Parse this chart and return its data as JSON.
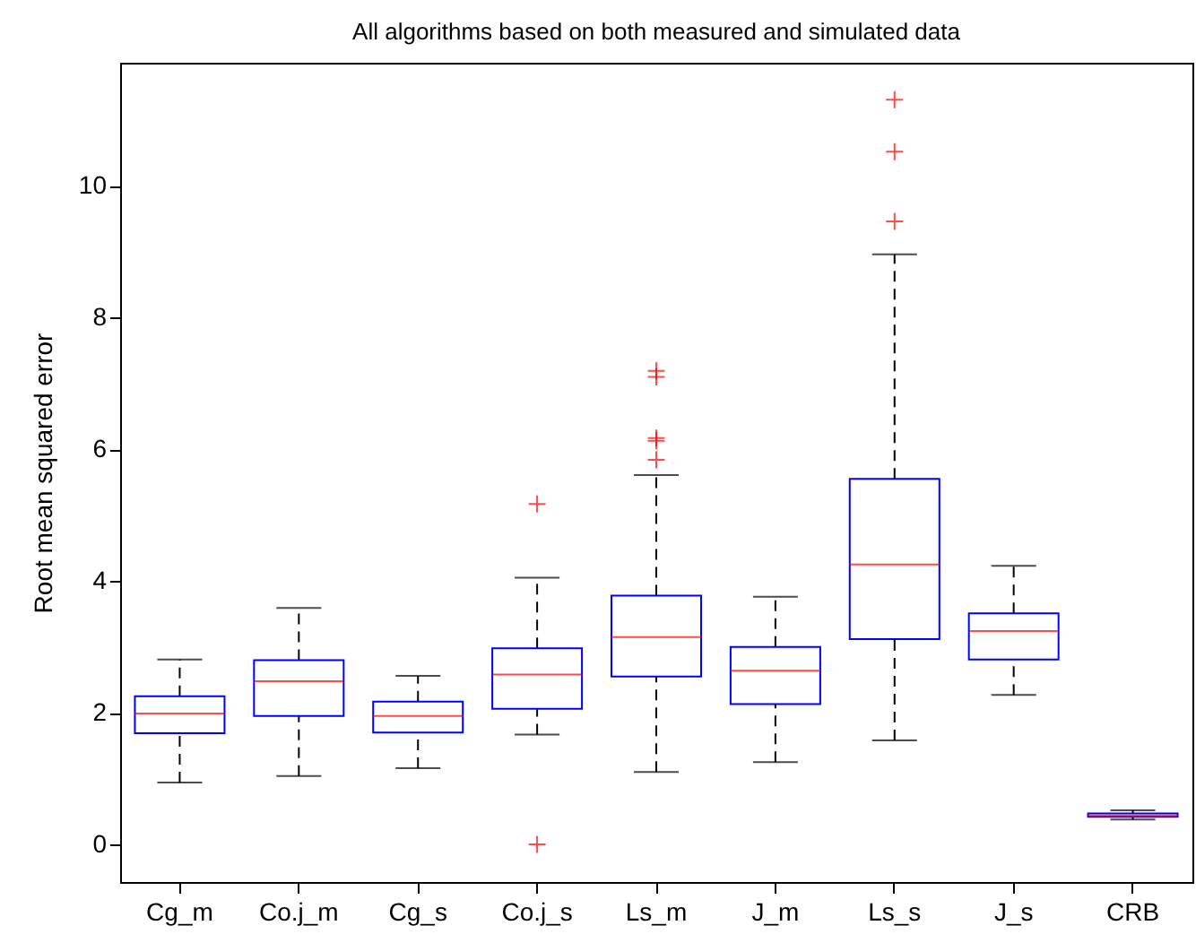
{
  "chart_data": {
    "type": "box",
    "title": "All algorithms based on both measured and simulated data",
    "ylabel": "Root mean squared error",
    "categories": [
      "Cg_m",
      "Co.j_m",
      "Cg_s",
      "Co.j_s",
      "Ls_m",
      "J_m",
      "Ls_s",
      "J_s",
      "CRB"
    ],
    "ylim": [
      -0.57,
      11.87
    ],
    "yticks": [
      0,
      2,
      4,
      6,
      8,
      10
    ],
    "grid": false,
    "color": "#0000ff",
    "boxes": [
      {
        "low": 0.94,
        "q1": 1.69,
        "median": 1.99,
        "q3": 2.25,
        "high": 2.81
      },
      {
        "low": 1.04,
        "q1": 1.95,
        "median": 2.48,
        "q3": 2.8,
        "high": 3.59
      },
      {
        "low": 1.16,
        "q1": 1.7,
        "median": 1.95,
        "q3": 2.17,
        "high": 2.56
      },
      {
        "low": 1.67,
        "q1": 2.06,
        "median": 2.58,
        "q3": 2.98,
        "high": 4.05,
        "outliers": [
          5.17,
          0
        ]
      },
      {
        "low": 1.1,
        "q1": 2.55,
        "median": 3.15,
        "q3": 3.78,
        "high": 5.61,
        "outliers": [
          7.19,
          7.1,
          6.17,
          6.13,
          5.84
        ]
      },
      {
        "low": 1.25,
        "q1": 2.13,
        "median": 2.64,
        "q3": 3.0,
        "high": 3.76
      },
      {
        "low": 1.58,
        "q1": 3.12,
        "median": 4.25,
        "q3": 5.55,
        "high": 8.96,
        "outliers": [
          11.31,
          10.52,
          9.46
        ]
      },
      {
        "low": 2.27,
        "q1": 2.81,
        "median": 3.24,
        "q3": 3.51,
        "high": 4.23
      },
      {
        "low": 0.38,
        "q1": 0.42,
        "median": 0.44,
        "q3": 0.47,
        "high": 0.52
      }
    ]
  }
}
